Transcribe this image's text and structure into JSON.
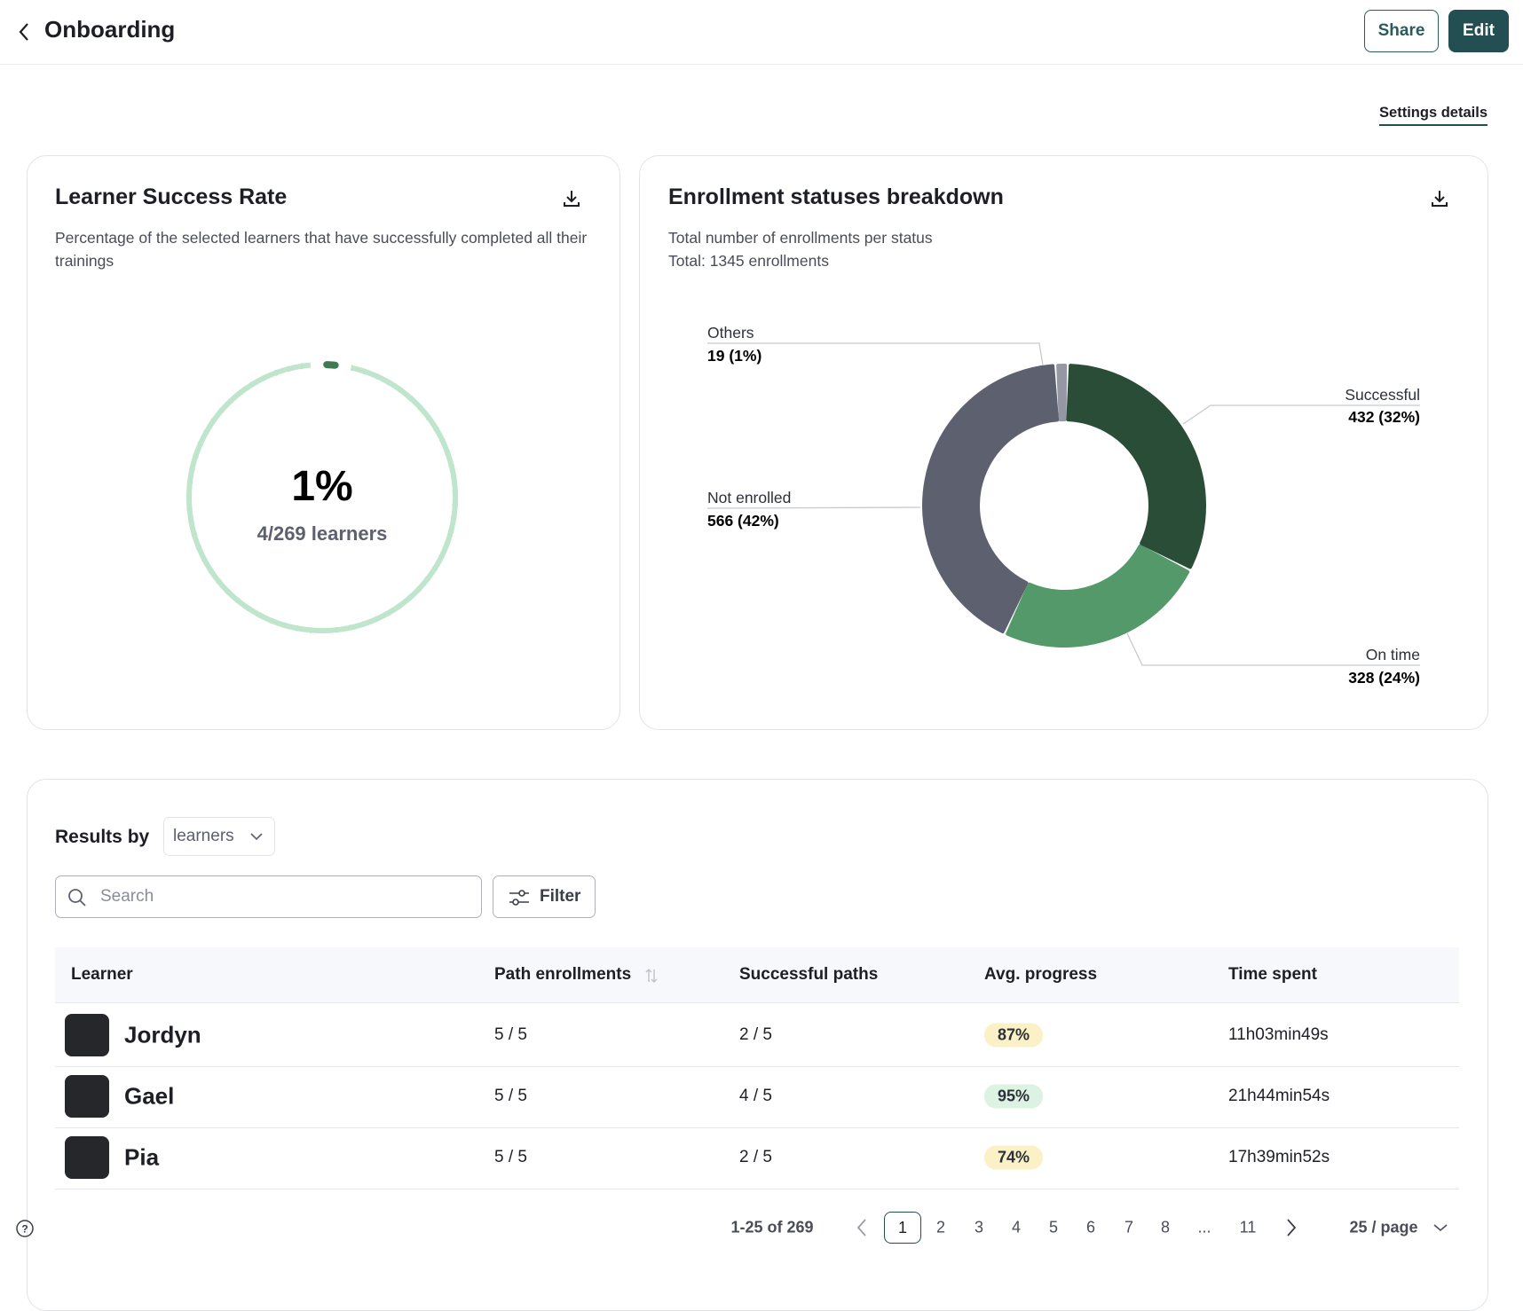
{
  "header": {
    "title": "Onboarding",
    "share": "Share",
    "edit": "Edit"
  },
  "settings_link": "Settings details",
  "success_card": {
    "title": "Learner Success Rate",
    "description": "Percentage of the selected learners that have successfully completed all their trainings",
    "percent": 1,
    "percent_label": "1%",
    "learners_label": "4/269 learners",
    "color": "#3f7a55",
    "track_color": "#bfe6cc"
  },
  "enrollment_card": {
    "title": "Enrollment statuses breakdown",
    "subtitle": "Total number of enrollments per status",
    "total_label": "Total: 1345 enrollments",
    "chart": {
      "type": "pie",
      "categories": [
        "Successful",
        "On time",
        "Not enrolled",
        "Others"
      ],
      "values": [
        432,
        328,
        566,
        19
      ],
      "value_labels": [
        "432 (32%)",
        "328 (24%)",
        "566 (42%)",
        "19 (1%)"
      ],
      "colors": [
        "#2a4d37",
        "#54996a",
        "#5d606e",
        "#9597a5"
      ]
    }
  },
  "results": {
    "label": "Results by",
    "group_by": "learners",
    "search_placeholder": "Search",
    "filter": "Filter"
  },
  "table": {
    "columns": [
      "Learner",
      "Path enrollments",
      "Successful paths",
      "Avg. progress",
      "Time spent"
    ],
    "rows": [
      [
        "Jordyn",
        "5 / 5",
        "2 / 5",
        "87%",
        "11h03min49s"
      ],
      [
        "Gael",
        "5 / 5",
        "4 / 5",
        "95%",
        "21h44min54s"
      ],
      [
        "Pia",
        "5 / 5",
        "2 / 5",
        "74%",
        "17h39min52s"
      ]
    ],
    "progress_colors": [
      "#fbf1c6",
      "#dcf2e3",
      "#fbf1c6"
    ]
  },
  "pagination": {
    "summary": "1-25 of 269",
    "pages": [
      "1",
      "2",
      "3",
      "4",
      "5",
      "6",
      "7",
      "8",
      "...",
      "11"
    ],
    "page_size": "25 / page"
  }
}
